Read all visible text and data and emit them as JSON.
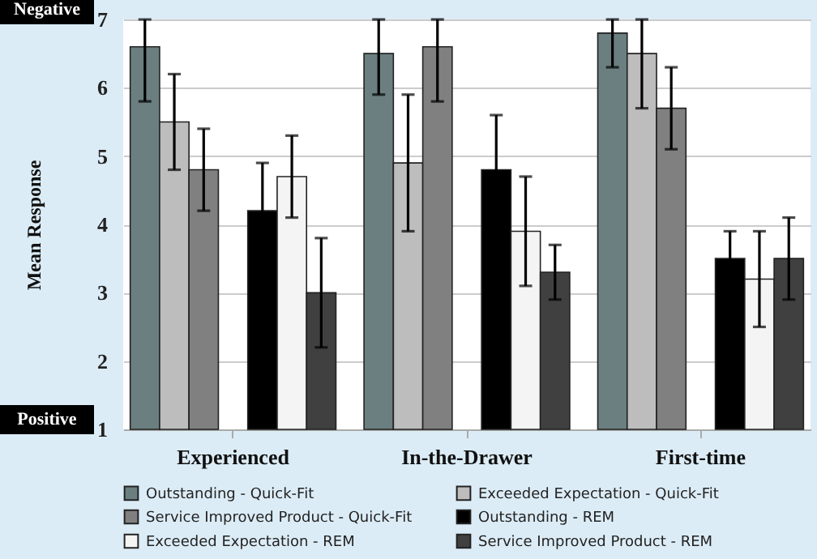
{
  "chart_data": {
    "type": "bar",
    "ylabel": "Mean Response",
    "categories": [
      "Experienced",
      "In-the-Drawer",
      "First-time"
    ],
    "series": [
      {
        "name": "Outstanding - Quick-Fit",
        "color": "#6b7f80",
        "values": [
          6.6,
          6.5,
          6.8
        ],
        "errors": [
          [
            5.8,
            7
          ],
          [
            5.9,
            7
          ],
          [
            6.3,
            7
          ]
        ]
      },
      {
        "name": "Exceeded Expectation - Quick-Fit",
        "color": "#bdbdbd",
        "values": [
          5.5,
          4.9,
          6.5
        ],
        "errors": [
          0.7,
          1.0,
          [
            5.7,
            7
          ]
        ]
      },
      {
        "name": "Service Improved Product - Quick-Fit",
        "color": "#808080",
        "values": [
          4.8,
          6.6,
          5.7
        ],
        "errors": [
          0.6,
          [
            5.8,
            7
          ],
          0.6
        ]
      },
      {
        "name": "Outstanding - REM",
        "color": "#000000",
        "values": [
          4.2,
          4.8,
          3.5
        ],
        "errors": [
          0.7,
          0.8,
          0.4
        ]
      },
      {
        "name": "Exceeded Expectation - REM",
        "color": "#f4f4f4",
        "values": [
          4.7,
          3.9,
          3.2
        ],
        "errors": [
          0.6,
          0.8,
          0.7
        ]
      },
      {
        "name": "Service Improved Product - REM",
        "color": "#404040",
        "values": [
          3.0,
          3.3,
          3.5
        ],
        "errors": [
          0.8,
          0.4,
          0.6
        ]
      }
    ],
    "ylim": [
      1,
      7
    ],
    "yticks": [
      1,
      2,
      3,
      4,
      5,
      6,
      7
    ],
    "grid": "y",
    "legend": "bottom",
    "annotations": [
      "Negative",
      "Positive"
    ]
  }
}
